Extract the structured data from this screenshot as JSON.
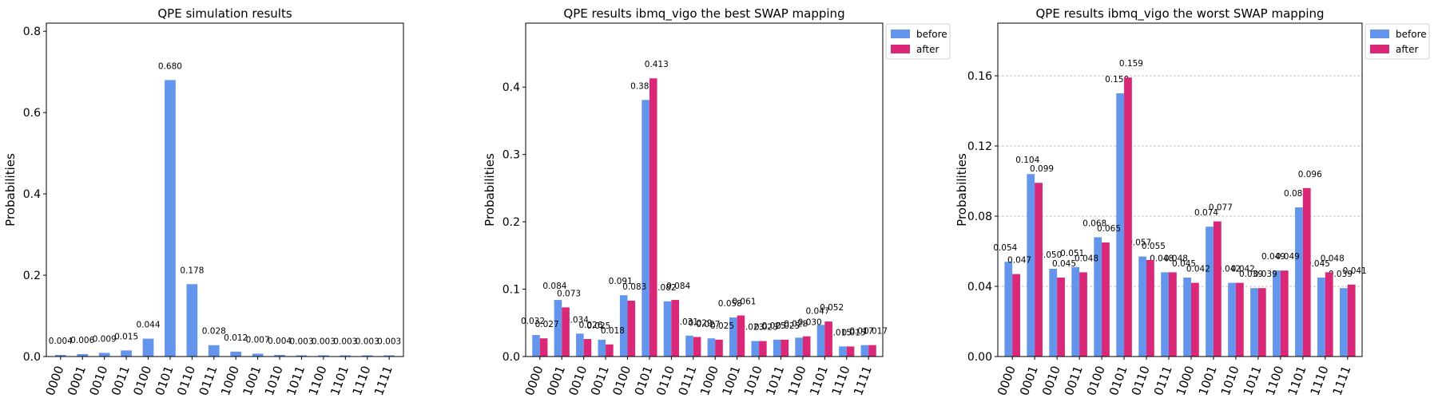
{
  "colors": {
    "before": "#6495ED",
    "after": "#DB2777",
    "single": "#6495ED",
    "grid": "#b0b0b0"
  },
  "chart_data": [
    {
      "type": "bar",
      "title": "QPE simulation results",
      "ylabel": "Probabilities",
      "xlabel": "",
      "ylim": [
        0,
        0.82
      ],
      "yticks": [
        0.0,
        0.2,
        0.4,
        0.6,
        0.8
      ],
      "ytick_labels": [
        "0.0",
        "0.2",
        "0.4",
        "0.6",
        "0.8"
      ],
      "grid": false,
      "legend": "none",
      "categories": [
        "0000",
        "0001",
        "0010",
        "0011",
        "0100",
        "0101",
        "0110",
        "0111",
        "1000",
        "1001",
        "1010",
        "1011",
        "1100",
        "1101",
        "1110",
        "1111"
      ],
      "series": [
        {
          "values": [
            0.004,
            0.006,
            0.009,
            0.015,
            0.044,
            0.68,
            0.178,
            0.028,
            0.012,
            0.007,
            0.004,
            0.003,
            0.003,
            0.003,
            0.003,
            0.003
          ],
          "labels": [
            "0.004",
            "0.006",
            "0.009",
            "0.015",
            "0.044",
            "0.680",
            "0.178",
            "0.028",
            "0.012",
            "0.007",
            "0.004",
            "0.003",
            "0.003",
            "0.003",
            "0.003",
            "0.003"
          ]
        }
      ]
    },
    {
      "type": "bar",
      "title": "QPE results ibmq_vigo the best SWAP mapping",
      "ylabel": "Probabilities",
      "xlabel": "",
      "ylim": [
        0,
        0.495
      ],
      "yticks": [
        0.0,
        0.1,
        0.2,
        0.3,
        0.4
      ],
      "ytick_labels": [
        "0.0",
        "0.1",
        "0.2",
        "0.3",
        "0.4"
      ],
      "grid": false,
      "legend": "outside-top-right",
      "categories": [
        "0000",
        "0001",
        "0010",
        "0011",
        "0100",
        "0101",
        "0110",
        "0111",
        "1000",
        "1001",
        "1010",
        "1011",
        "1100",
        "1101",
        "1110",
        "1111"
      ],
      "series": [
        {
          "name": "before",
          "values": [
            0.032,
            0.084,
            0.034,
            0.025,
            0.091,
            0.381,
            0.082,
            0.031,
            0.027,
            0.058,
            0.023,
            0.025,
            0.028,
            0.047,
            0.015,
            0.017
          ],
          "labels": [
            "0.032",
            "0.084",
            "0.034",
            "0.025",
            "0.091",
            "0.381",
            "0.082",
            "0.031",
            "0.027",
            "0.058",
            "0.023",
            "0.025",
            "0.028",
            "0.047",
            "0.015",
            "0.017"
          ]
        },
        {
          "name": "after",
          "values": [
            0.027,
            0.073,
            0.026,
            0.018,
            0.083,
            0.413,
            0.084,
            0.029,
            0.025,
            0.061,
            0.023,
            0.025,
            0.03,
            0.052,
            0.015,
            0.017
          ],
          "labels": [
            "0.027",
            "0.073",
            "0.026",
            "0.018",
            "0.083",
            "0.413",
            "0.084",
            "0.029",
            "0.025",
            "0.061",
            "0.023",
            "0.025",
            "0.030",
            "0.052",
            "0.015",
            "0.017"
          ]
        }
      ]
    },
    {
      "type": "bar",
      "title": "QPE results ibmq_vigo the worst SWAP mapping",
      "ylabel": "Probabilities",
      "xlabel": "",
      "ylim": [
        0,
        0.19
      ],
      "yticks": [
        0.0,
        0.04,
        0.08,
        0.12,
        0.16
      ],
      "ytick_labels": [
        "0.00",
        "0.04",
        "0.08",
        "0.12",
        "0.16"
      ],
      "grid": true,
      "legend": "outside-top-right",
      "categories": [
        "0000",
        "0001",
        "0010",
        "0011",
        "0100",
        "0101",
        "0110",
        "0111",
        "1000",
        "1001",
        "1010",
        "1011",
        "1100",
        "1101",
        "1110",
        "1111"
      ],
      "series": [
        {
          "name": "before",
          "values": [
            0.054,
            0.104,
            0.05,
            0.051,
            0.068,
            0.15,
            0.057,
            0.048,
            0.045,
            0.074,
            0.042,
            0.039,
            0.049,
            0.085,
            0.045,
            0.039
          ],
          "labels": [
            "0.054",
            "0.104",
            "0.050",
            "0.051",
            "0.068",
            "0.150",
            "0.057",
            "0.048",
            "0.045",
            "0.074",
            "0.042",
            "0.039",
            "0.049",
            "0.085",
            "0.045",
            "0.039"
          ]
        },
        {
          "name": "after",
          "values": [
            0.047,
            0.099,
            0.045,
            0.048,
            0.065,
            0.159,
            0.055,
            0.048,
            0.042,
            0.077,
            0.042,
            0.039,
            0.049,
            0.096,
            0.048,
            0.041
          ],
          "labels": [
            "0.047",
            "0.099",
            "0.045",
            "0.048",
            "0.065",
            "0.159",
            "0.055",
            "0.048",
            "0.042",
            "0.077",
            "0.042",
            "0.039",
            "0.049",
            "0.096",
            "0.048",
            "0.041"
          ]
        }
      ]
    }
  ]
}
